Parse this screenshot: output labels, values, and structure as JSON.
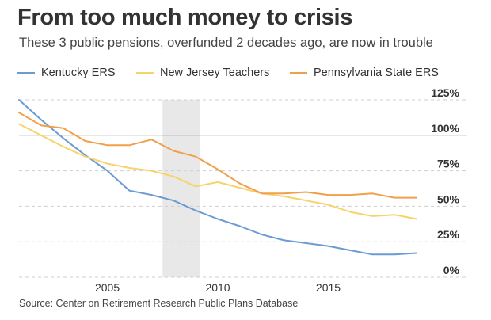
{
  "title": "From too much money to crisis",
  "subtitle": "These 3 public pensions, overfunded 2 decades ago, are now in trouble",
  "source": "Source: Center on Retirement Research Public Plans Database",
  "legend": [
    {
      "label": "Kentucky ERS",
      "color": "#6b9bd2"
    },
    {
      "label": "New Jersey Teachers",
      "color": "#f7d36b"
    },
    {
      "label": "Pennsylvania State ERS",
      "color": "#f0a04b"
    }
  ],
  "chart_data": {
    "type": "line",
    "x": [
      2001,
      2002,
      2003,
      2004,
      2005,
      2006,
      2007,
      2008,
      2009,
      2010,
      2011,
      2012,
      2013,
      2014,
      2015,
      2016,
      2017,
      2018,
      2019
    ],
    "series": [
      {
        "name": "Kentucky ERS",
        "color": "#6b9bd2",
        "values": [
          125,
          111,
          98,
          86,
          75,
          61,
          58,
          54,
          47,
          41,
          36,
          30,
          26,
          24,
          22,
          19,
          16,
          16,
          17
        ]
      },
      {
        "name": "New Jersey Teachers",
        "color": "#f7d36b",
        "values": [
          108,
          100,
          92,
          85,
          80,
          77,
          75,
          71,
          64,
          67,
          63,
          59,
          57,
          54,
          51,
          46,
          43,
          44,
          41
        ]
      },
      {
        "name": "Pennsylvania State ERS",
        "color": "#f0a04b",
        "values": [
          116,
          107,
          105,
          96,
          93,
          93,
          97,
          89,
          85,
          76,
          66,
          59,
          59,
          60,
          58,
          58,
          59,
          56,
          56
        ]
      }
    ],
    "x_ticks": [
      2005,
      2010,
      2015
    ],
    "x_tick_labels": [
      "2005",
      "2010",
      "2015"
    ],
    "y_ticks": [
      0,
      25,
      50,
      75,
      100,
      125
    ],
    "y_tick_labels": [
      "0%",
      "25%",
      "50%",
      "75%",
      "100%",
      "125%"
    ],
    "xlim": [
      2001,
      2019.5
    ],
    "ylim": [
      0,
      125
    ],
    "shaded_region": [
      2007.5,
      2009.2
    ],
    "reference_line": 100,
    "grid": "horizontal dashed",
    "legend_position": "top"
  }
}
